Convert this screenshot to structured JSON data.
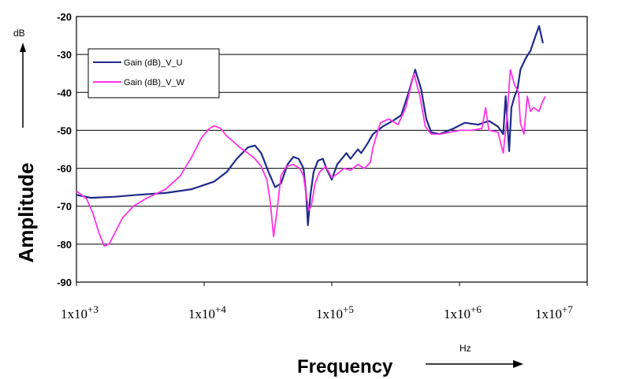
{
  "chart_data": {
    "type": "line",
    "xlabel": "Frequency",
    "x_unit": "Hz",
    "ylabel": "Amplitude",
    "y_unit": "dB",
    "x_scale": "log",
    "xlim": [
      1000,
      10000000
    ],
    "ylim": [
      -90,
      -20
    ],
    "y_ticks": [
      "-20",
      "-30",
      "-40",
      "-50",
      "-60",
      "-70",
      "-80",
      "-90"
    ],
    "x_ticks": [
      {
        "base": "1x10",
        "exp": "+3"
      },
      {
        "base": "1x10",
        "exp": "+4"
      },
      {
        "base": "1x10",
        "exp": "+5"
      },
      {
        "base": "1x10",
        "exp": "+6"
      },
      {
        "base": "1x10",
        "exp": "+7"
      }
    ],
    "grid": "horizontal",
    "legend_position": "top-left",
    "series": [
      {
        "name": "Gain (dB)_V_U",
        "color": "#1f2a8a",
        "points": [
          [
            1000,
            -67
          ],
          [
            1300,
            -67.8
          ],
          [
            2000,
            -67.5
          ],
          [
            3000,
            -67
          ],
          [
            5000,
            -66.5
          ],
          [
            8000,
            -65.5
          ],
          [
            12000,
            -63.5
          ],
          [
            15000,
            -61
          ],
          [
            18000,
            -57.5
          ],
          [
            22000,
            -54.5
          ],
          [
            25000,
            -54
          ],
          [
            28000,
            -56
          ],
          [
            32000,
            -61
          ],
          [
            36000,
            -65
          ],
          [
            40000,
            -64
          ],
          [
            45000,
            -59
          ],
          [
            50000,
            -57
          ],
          [
            55000,
            -57.5
          ],
          [
            60000,
            -60
          ],
          [
            63000,
            -67
          ],
          [
            65000,
            -75
          ],
          [
            68000,
            -67
          ],
          [
            72000,
            -61
          ],
          [
            78000,
            -58
          ],
          [
            85000,
            -57.5
          ],
          [
            92000,
            -60.5
          ],
          [
            100000,
            -63
          ],
          [
            110000,
            -59
          ],
          [
            130000,
            -56
          ],
          [
            140000,
            -57.5
          ],
          [
            160000,
            -55
          ],
          [
            170000,
            -56
          ],
          [
            190000,
            -53.5
          ],
          [
            210000,
            -51
          ],
          [
            250000,
            -49
          ],
          [
            300000,
            -47.5
          ],
          [
            350000,
            -46
          ],
          [
            400000,
            -40
          ],
          [
            450000,
            -34
          ],
          [
            500000,
            -39
          ],
          [
            550000,
            -47
          ],
          [
            600000,
            -50.5
          ],
          [
            700000,
            -51
          ],
          [
            900000,
            -49.5
          ],
          [
            1100000,
            -48
          ],
          [
            1400000,
            -48.5
          ],
          [
            1700000,
            -47.5
          ],
          [
            2000000,
            -49
          ],
          [
            2200000,
            -51
          ],
          [
            2300000,
            -41
          ],
          [
            2450000,
            -55.5
          ],
          [
            2550000,
            -44
          ],
          [
            2700000,
            -41
          ],
          [
            2850000,
            -39
          ],
          [
            3000000,
            -34
          ],
          [
            3300000,
            -31
          ],
          [
            3600000,
            -29
          ],
          [
            3900000,
            -25.5
          ],
          [
            4200000,
            -22.5
          ],
          [
            4500000,
            -27
          ]
        ]
      },
      {
        "name": "Gain (dB)_V_W",
        "color": "#ff33e6",
        "points": [
          [
            1000,
            -66
          ],
          [
            1200,
            -68
          ],
          [
            1350,
            -72
          ],
          [
            1500,
            -77
          ],
          [
            1650,
            -80.5
          ],
          [
            1800,
            -80
          ],
          [
            2000,
            -77
          ],
          [
            2300,
            -73
          ],
          [
            2800,
            -70
          ],
          [
            3500,
            -68
          ],
          [
            5000,
            -65.5
          ],
          [
            6500,
            -62
          ],
          [
            8000,
            -57
          ],
          [
            9500,
            -52
          ],
          [
            11000,
            -49.5
          ],
          [
            12000,
            -48.8
          ],
          [
            13500,
            -49.5
          ],
          [
            15000,
            -51.5
          ],
          [
            17000,
            -53
          ],
          [
            19000,
            -54.5
          ],
          [
            22000,
            -56
          ],
          [
            25000,
            -57.5
          ],
          [
            28000,
            -59.5
          ],
          [
            31000,
            -63
          ],
          [
            33000,
            -69
          ],
          [
            35000,
            -78
          ],
          [
            37000,
            -72
          ],
          [
            40000,
            -62
          ],
          [
            44000,
            -59.5
          ],
          [
            50000,
            -59
          ],
          [
            56000,
            -60
          ],
          [
            60000,
            -62
          ],
          [
            63000,
            -67
          ],
          [
            66000,
            -71
          ],
          [
            69000,
            -70
          ],
          [
            74000,
            -64
          ],
          [
            80000,
            -61
          ],
          [
            90000,
            -59.5
          ],
          [
            100000,
            -62.5
          ],
          [
            110000,
            -61.5
          ],
          [
            125000,
            -60
          ],
          [
            140000,
            -60.5
          ],
          [
            160000,
            -59
          ],
          [
            180000,
            -60
          ],
          [
            200000,
            -58.5
          ],
          [
            210000,
            -54.5
          ],
          [
            240000,
            -48
          ],
          [
            280000,
            -47
          ],
          [
            330000,
            -48.5
          ],
          [
            380000,
            -44
          ],
          [
            440000,
            -35
          ],
          [
            490000,
            -41
          ],
          [
            540000,
            -49
          ],
          [
            600000,
            -51
          ],
          [
            700000,
            -51
          ],
          [
            850000,
            -50.5
          ],
          [
            1000000,
            -50
          ],
          [
            1250000,
            -50
          ],
          [
            1500000,
            -49.5
          ],
          [
            1600000,
            -44
          ],
          [
            1700000,
            -50
          ],
          [
            2000000,
            -50.5
          ],
          [
            2200000,
            -56
          ],
          [
            2350000,
            -47
          ],
          [
            2500000,
            -34
          ],
          [
            2700000,
            -38
          ],
          [
            2900000,
            -40
          ],
          [
            3000000,
            -48
          ],
          [
            3200000,
            -51
          ],
          [
            3400000,
            -41
          ],
          [
            3600000,
            -45
          ],
          [
            3800000,
            -44
          ],
          [
            4200000,
            -45
          ],
          [
            4400000,
            -43
          ],
          [
            4700000,
            -41
          ]
        ]
      }
    ]
  }
}
